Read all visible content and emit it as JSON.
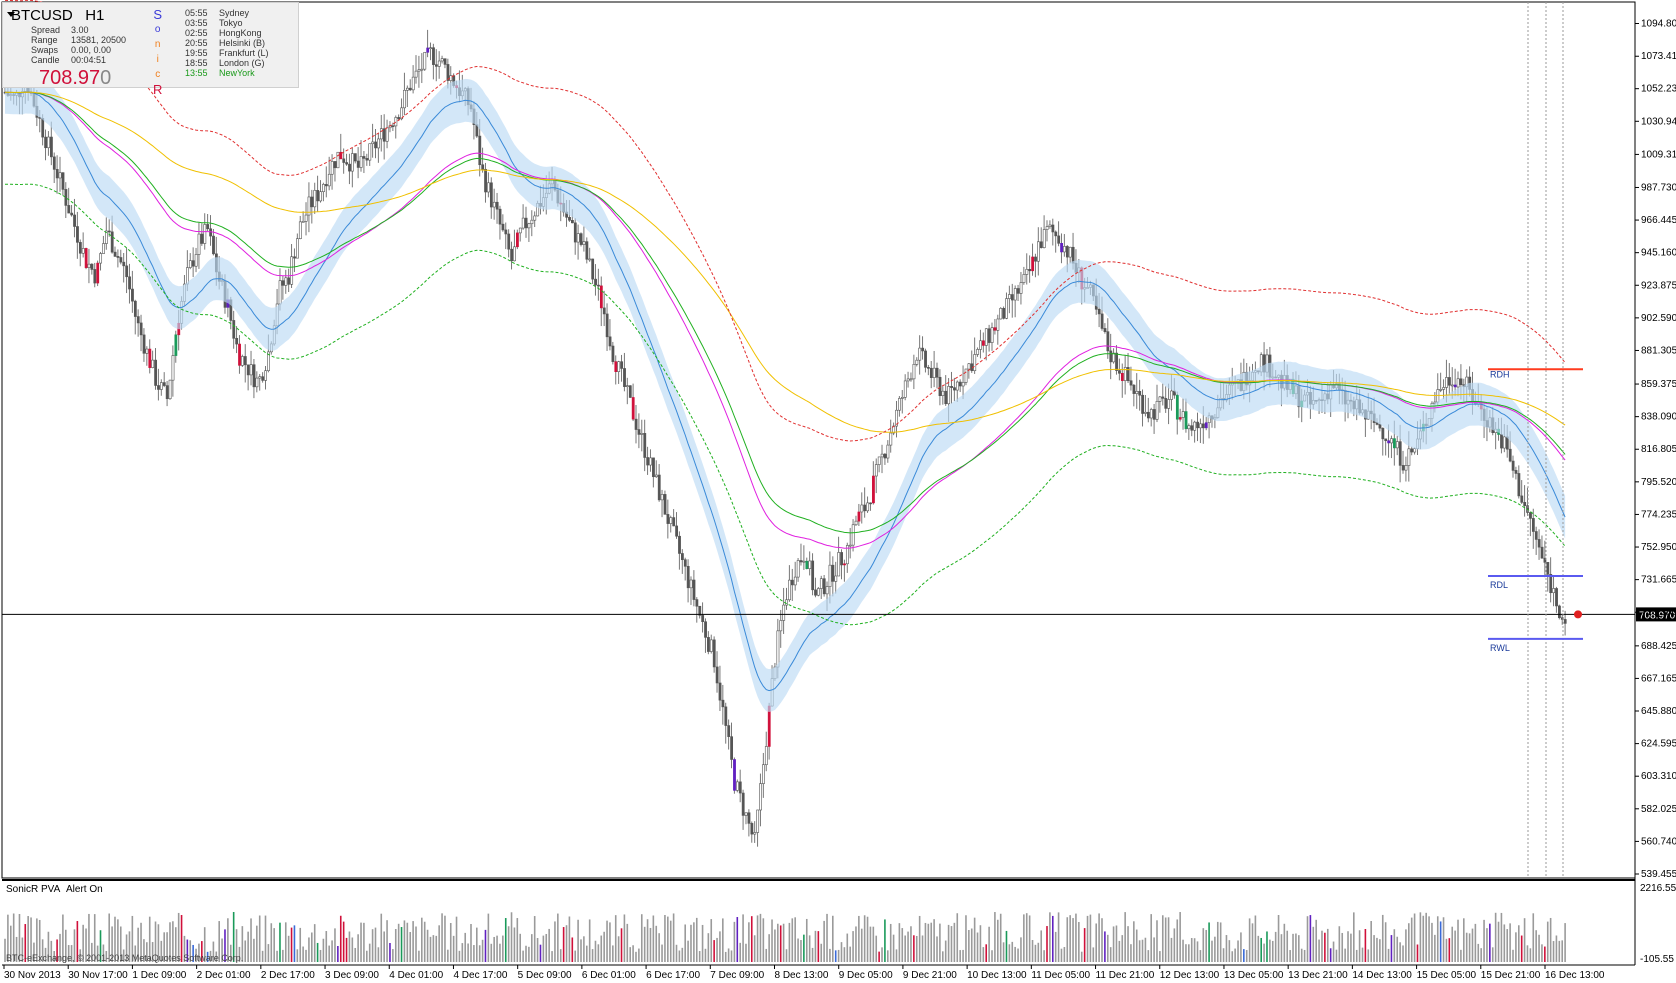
{
  "header": {
    "symbol": "BTCUSD",
    "timeframe": "H1",
    "spread_label": "Spread",
    "spread_value": "3.00",
    "range_label": "Range",
    "range_value": "13581, 20500",
    "swaps_label": "Swaps",
    "swaps_value": "0.00, 0.00",
    "candle_label": "Candle",
    "candle_value": "00:04:51",
    "price_main": "708.97",
    "price_last": "0"
  },
  "sonic_letters": [
    "S",
    "o",
    "n",
    "i",
    "c",
    "R"
  ],
  "sessions": [
    {
      "time": "05:55",
      "name": "Sydney"
    },
    {
      "time": "03:55",
      "name": "Tokyo"
    },
    {
      "time": "02:55",
      "name": "HongKong"
    },
    {
      "time": "20:55",
      "name": "Helsinki  (B)"
    },
    {
      "time": "19:55",
      "name": "Frankfurt  (L)"
    },
    {
      "time": "18:55",
      "name": "London  (G)"
    },
    {
      "time": "13:55",
      "name": "NewYork"
    }
  ],
  "chart_data": {
    "type": "candlestick",
    "y_ticks": [
      "1094.80",
      "1073.415",
      "1052.235",
      "1030.945",
      "1009.315",
      "987.730",
      "966.445",
      "945.160",
      "923.875",
      "902.590",
      "881.305",
      "859.375",
      "838.090",
      "816.805",
      "795.520",
      "774.235",
      "752.950",
      "731.665",
      "710.380",
      "688.425",
      "667.165",
      "645.880",
      "624.595",
      "603.310",
      "582.025",
      "560.740",
      "539.455"
    ],
    "ylim": [
      539.455,
      1101
    ],
    "current_price_label": "708.970",
    "current_price": 708.97,
    "x_ticks": [
      "30 Nov 2013",
      "30 Nov 17:00",
      "1 Dec 09:00",
      "2 Dec 01:00",
      "2 Dec 17:00",
      "3 Dec 09:00",
      "4 Dec 01:00",
      "4 Dec 17:00",
      "5 Dec 09:00",
      "6 Dec 01:00",
      "6 Dec 17:00",
      "7 Dec 09:00",
      "8 Dec 13:00",
      "9 Dec 05:00",
      "9 Dec 21:00",
      "10 Dec 13:00",
      "11 Dec 05:00",
      "11 Dec 21:00",
      "12 Dec 13:00",
      "13 Dec 05:00",
      "13 Dec 21:00",
      "14 Dec 13:00",
      "15 Dec 05:00",
      "15 Dec 21:00",
      "16 Dec 13:00"
    ],
    "levels": [
      {
        "label": "RDH",
        "value": 869.0,
        "color": "#ff3b1f"
      },
      {
        "label": "RDL",
        "value": 734.0,
        "color": "#5a5af0"
      },
      {
        "label": "RWL",
        "value": 693.0,
        "color": "#5a5af0"
      }
    ],
    "close_path": [
      1050,
      1045,
      1060,
      1040,
      1020,
      1000,
      980,
      960,
      940,
      930,
      960,
      945,
      930,
      900,
      880,
      860,
      850,
      900,
      930,
      950,
      960,
      930,
      910,
      880,
      870,
      860,
      880,
      920,
      930,
      960,
      975,
      985,
      1000,
      1010,
      1005,
      1000,
      1010,
      1020,
      1030,
      1040,
      1055,
      1065,
      1075,
      1070,
      1060,
      1050,
      1040,
      1000,
      980,
      960,
      940,
      960,
      970,
      980,
      990,
      975,
      960,
      950,
      930,
      910,
      880,
      860,
      840,
      820,
      800,
      780,
      760,
      740,
      720,
      700,
      680,
      640,
      600,
      580,
      560,
      620,
      680,
      720,
      740,
      750,
      720,
      730,
      740,
      750,
      770,
      780,
      800,
      820,
      840,
      860,
      880,
      870,
      860,
      850,
      860,
      870,
      880,
      890,
      900,
      910,
      920,
      930,
      950,
      960,
      955,
      945,
      930,
      920,
      900,
      880,
      870,
      860,
      850,
      840,
      845,
      850,
      840,
      830,
      835,
      840,
      850,
      855,
      860,
      870,
      875,
      870,
      860,
      855,
      850,
      845,
      850,
      860,
      850,
      845,
      840,
      835,
      830,
      820,
      810,
      815,
      830,
      850,
      860,
      865,
      860,
      850,
      840,
      830,
      820,
      800,
      780,
      760,
      740,
      720,
      705
    ],
    "volume_axis": {
      "max_label": "2216.55",
      "min_label": "-105.55"
    }
  },
  "volume_panel": {
    "indicator_label": "SonicR PVA",
    "alert_label": "Alert On",
    "copyright": "BTC-eExchange, © 2001-2013 MetaQuotes Software Corp."
  }
}
